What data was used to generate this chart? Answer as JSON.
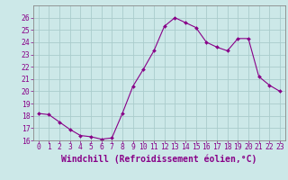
{
  "x": [
    0,
    1,
    2,
    3,
    4,
    5,
    6,
    7,
    8,
    9,
    10,
    11,
    12,
    13,
    14,
    15,
    16,
    17,
    18,
    19,
    20,
    21,
    22,
    23
  ],
  "y": [
    18.2,
    18.1,
    17.5,
    16.9,
    16.4,
    16.3,
    16.1,
    16.2,
    18.2,
    20.4,
    21.8,
    23.3,
    25.3,
    26.0,
    25.6,
    25.2,
    24.0,
    23.6,
    23.3,
    24.3,
    24.3,
    21.2,
    20.5,
    20.0
  ],
  "line_color": "#880088",
  "marker": "D",
  "marker_size": 2.0,
  "bg_color": "#cce8e8",
  "grid_color": "#aacccc",
  "xlabel": "Windchill (Refroidissement éolien,°C)",
  "xlim": [
    -0.5,
    23.5
  ],
  "ylim": [
    16,
    27
  ],
  "yticks": [
    16,
    17,
    18,
    19,
    20,
    21,
    22,
    23,
    24,
    25,
    26
  ],
  "xticks": [
    0,
    1,
    2,
    3,
    4,
    5,
    6,
    7,
    8,
    9,
    10,
    11,
    12,
    13,
    14,
    15,
    16,
    17,
    18,
    19,
    20,
    21,
    22,
    23
  ],
  "tick_label_fontsize": 5.8,
  "xlabel_fontsize": 7.0,
  "axis_label_color": "#880088",
  "tick_color": "#880088",
  "spine_color": "#888888"
}
